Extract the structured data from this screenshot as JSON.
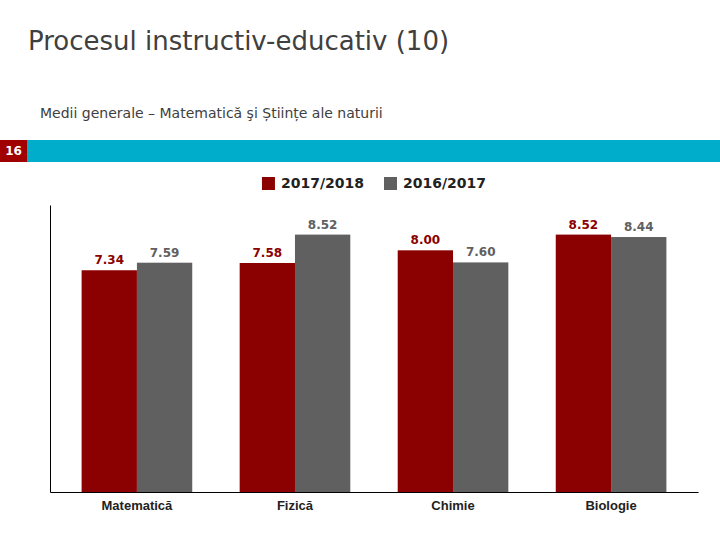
{
  "chart_data": {
    "type": "bar",
    "title": "Procesul instructiv-educativ (10)",
    "subtitle": "Medii generale – Matematică şi Științe ale naturii",
    "annotations": [
      "16"
    ],
    "categories": [
      "Matematică",
      "Fizică",
      "Chimie",
      "Biologie"
    ],
    "series": [
      {
        "name": "2017/2018",
        "color": "#8B0000",
        "values": [
          7.34,
          7.58,
          8.0,
          8.52
        ],
        "value_labels": [
          "7.34",
          "7.58",
          "8.00",
          "8.52"
        ]
      },
      {
        "name": "2016/2017",
        "color": "#606060",
        "values": [
          7.59,
          8.52,
          7.6,
          8.44
        ],
        "value_labels": [
          "7.59",
          "8.52",
          "7.60",
          "8.44"
        ]
      }
    ],
    "ylim": [
      0,
      9.5
    ],
    "tick_labels": "x",
    "data_labels": true,
    "legend": "top",
    "grid": false
  }
}
